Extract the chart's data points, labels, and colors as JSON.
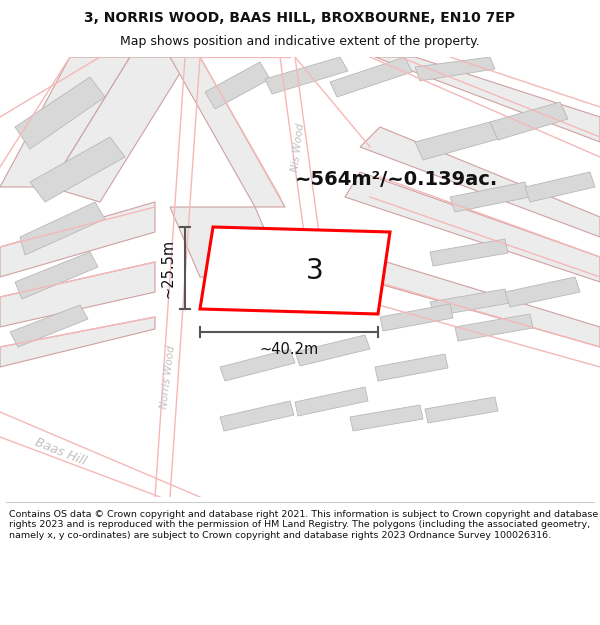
{
  "title": "3, NORRIS WOOD, BAAS HILL, BROXBOURNE, EN10 7EP",
  "subtitle": "Map shows position and indicative extent of the property.",
  "footer": "Contains OS data © Crown copyright and database right 2021. This information is subject to Crown copyright and database rights 2023 and is reproduced with the permission of HM Land Registry. The polygons (including the associated geometry, namely x, y co-ordinates) are subject to Crown copyright and database rights 2023 Ordnance Survey 100026316.",
  "area_text": "~564m²/~0.139ac.",
  "width_label": "~40.2m",
  "height_label": "~25.5m",
  "plot_number": "3",
  "plot_edge_color": "#ff0000",
  "plot_fill_color": "#ffffff",
  "map_bg": "#ffffff",
  "title_bg": "#ffffff",
  "footer_bg": "#ffffff",
  "road_color": "#f5b8b8",
  "building_fill": "#d8d8d8",
  "building_edge": "#b8b8b8",
  "parcel_fill": "#ececec",
  "parcel_edge": "#d0a0a0",
  "dim_color": "#555555",
  "label_color": "#c0c0c0",
  "title_fontsize": 10,
  "subtitle_fontsize": 9,
  "footer_fontsize": 6.8,
  "area_fontsize": 14,
  "plot_num_fontsize": 20,
  "dim_fontsize": 10.5,
  "road_label_fontsize": 7.5
}
